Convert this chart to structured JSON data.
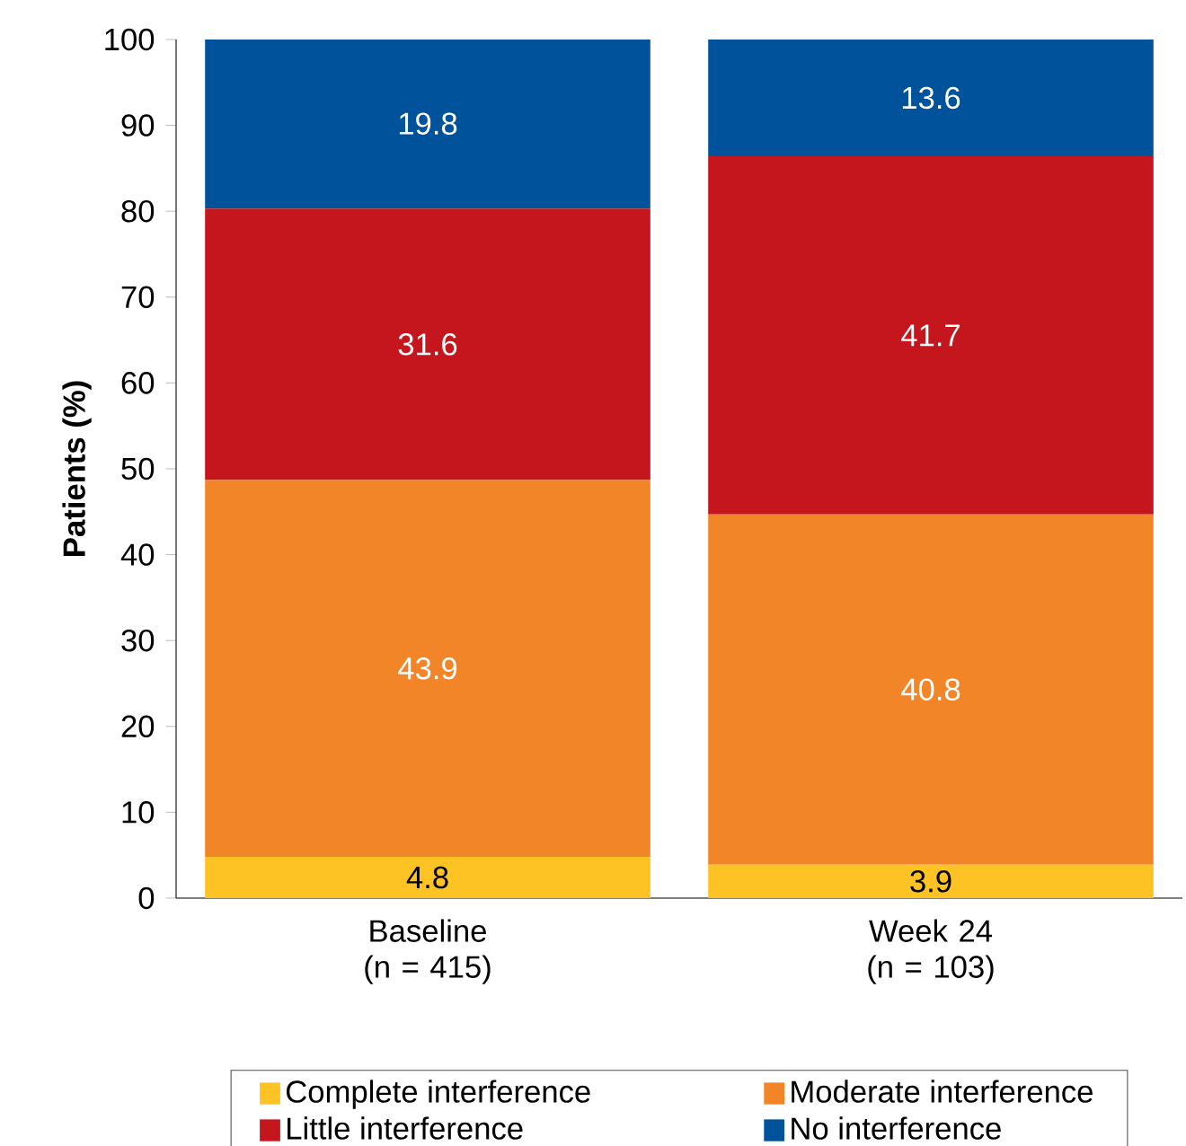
{
  "chart_data": {
    "type": "bar",
    "stacked": true,
    "ylabel": "Patients (%)",
    "categories": [
      "Baseline (n = 415)",
      "Week 24 (n = 103)"
    ],
    "series": [
      {
        "name": "Complete interference",
        "color": "#fdc223",
        "values": [
          4.8,
          3.9
        ]
      },
      {
        "name": "Moderate interference",
        "color": "#f28527",
        "values": [
          43.9,
          40.8
        ]
      },
      {
        "name": "Little interference",
        "color": "#c4161c",
        "values": [
          31.6,
          41.7
        ]
      },
      {
        "name": "No interference",
        "color": "#00529b",
        "values": [
          19.8,
          13.6
        ]
      }
    ],
    "ylim": [
      0,
      100
    ],
    "yticks": [
      0,
      10,
      20,
      30,
      40,
      50,
      60,
      70,
      80,
      90,
      100
    ],
    "data_labels": true,
    "legend": "bottom",
    "grid": false
  }
}
